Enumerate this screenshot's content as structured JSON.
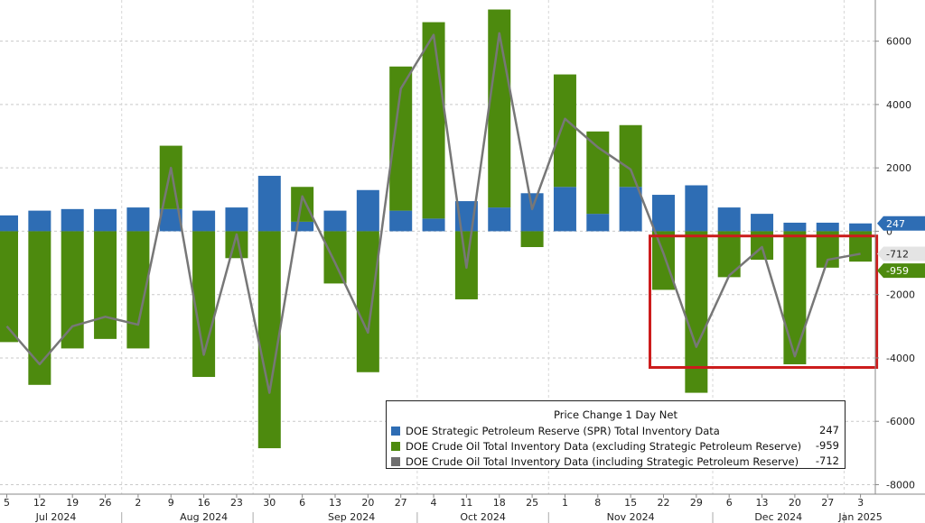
{
  "chart_data": {
    "type": "bar",
    "x": [
      "5",
      "12",
      "19",
      "26",
      "2",
      "9",
      "16",
      "23",
      "30",
      "6",
      "13",
      "20",
      "27",
      "4",
      "11",
      "18",
      "25",
      "1",
      "8",
      "15",
      "22",
      "29",
      "6",
      "13",
      "20",
      "27",
      "3"
    ],
    "month_labels": [
      {
        "label": "Jul 2024",
        "index": 1.5
      },
      {
        "label": "Aug 2024",
        "index": 6
      },
      {
        "label": "Sep 2024",
        "index": 10.5
      },
      {
        "label": "Oct 2024",
        "index": 14.5
      },
      {
        "label": "Nov 2024",
        "index": 19
      },
      {
        "label": "Dec 2024",
        "index": 23.5
      },
      {
        "label": "Jan 2025",
        "index": 26
      }
    ],
    "ylim": [
      -8300,
      7300
    ],
    "yticks": [
      6000,
      4000,
      2000,
      0,
      -2000,
      -4000,
      -6000,
      -8000
    ],
    "ytick_labels": [
      "6000",
      "4000",
      "2000",
      "0",
      "-2000",
      "-4000",
      "-6000",
      "-8000"
    ],
    "series": [
      {
        "name": "DOE Strategic Petroleum Reserve (SPR) Total Inventory Data",
        "type": "bar",
        "color": "#2e6db4",
        "values": [
          500,
          650,
          700,
          700,
          750,
          700,
          650,
          750,
          1750,
          300,
          650,
          1300,
          650,
          400,
          950,
          750,
          1200,
          1400,
          550,
          1400,
          1150,
          1450,
          750,
          550,
          270,
          270,
          247
        ]
      },
      {
        "name": "DOE Crude Oil Total Inventory Data (excluding Strategic Petroleum Reserve)",
        "type": "bar",
        "color": "#4d8a0e",
        "values": [
          -3500,
          -4850,
          -3700,
          -3400,
          -3700,
          2000,
          -4600,
          -850,
          -6850,
          1100,
          -1650,
          -4450,
          4550,
          6200,
          -2150,
          6250,
          -500,
          3550,
          2600,
          1950,
          -1850,
          -5100,
          -1450,
          -900,
          -4200,
          -1150,
          -959
        ]
      },
      {
        "name": "DOE Crude Oil Total Inventory Data (including Strategic Petroleum Reserve)",
        "type": "line",
        "color": "#777777",
        "values": [
          -3000,
          -4200,
          -3000,
          -2700,
          -2950,
          2000,
          -3900,
          -100,
          -5100,
          1100,
          -1000,
          -3200,
          4500,
          6200,
          -1150,
          6250,
          700,
          3550,
          2650,
          1950,
          -700,
          -3650,
          -1400,
          -500,
          -3950,
          -900,
          -712
        ]
      }
    ],
    "legend": {
      "title": "Price Change 1 Day Net",
      "entries": [
        {
          "label": "DOE Strategic Petroleum Reserve (SPR) Total Inventory Data",
          "value": "247",
          "color": "#2e6db4"
        },
        {
          "label": "DOE Crude Oil Total Inventory Data (excluding Strategic Petroleum Reserve)",
          "value": "-959",
          "color": "#4d8a0e"
        },
        {
          "label": "DOE Crude Oil Total Inventory Data (including Strategic Petroleum Reserve)",
          "value": "-712",
          "color": "#6f6f6f"
        }
      ]
    },
    "last_value_tags": [
      {
        "value": "247",
        "color": "#2e6db4",
        "text_color": "#ffffff",
        "at": 247
      },
      {
        "value": "-712",
        "color": "#e4e4e4",
        "text_color": "#222222",
        "at": -712
      },
      {
        "value": "-959",
        "color": "#4d8a0e",
        "text_color": "#ffffff",
        "at": -959
      }
    ],
    "highlight_range": {
      "from_x": "22",
      "to_x": "3",
      "ymin": -4300,
      "ymax": -150,
      "color": "#cc1c1c"
    },
    "grid": "horizontal dashed",
    "legend_position": "bottom-right"
  }
}
